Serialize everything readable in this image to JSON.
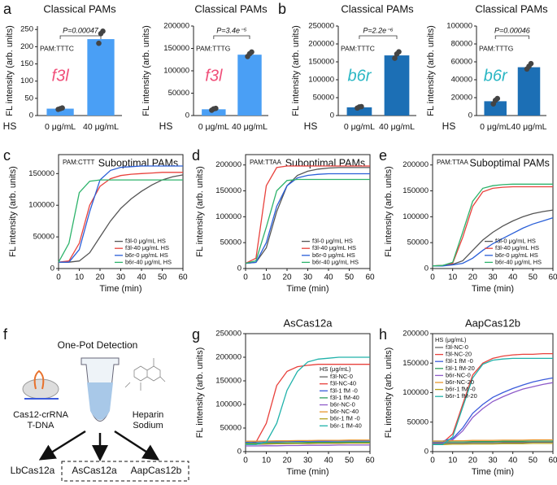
{
  "panel_labels": [
    "a",
    "b",
    "c",
    "d",
    "e",
    "f",
    "g",
    "h"
  ],
  "diagram": {
    "title": "One-Pot Detection",
    "left_label": [
      "Cas12-crRNA",
      "T-DNA"
    ],
    "right_label": [
      "Heparin",
      "Sodium"
    ],
    "outputs": [
      "LbCas12a",
      "AsCas12a",
      "AapCas12b"
    ]
  },
  "chart_data": [
    {
      "type": "bar",
      "title": "Classical PAMs",
      "ylabel": "FL intensity (arb. units)",
      "xlabel": "HS",
      "categories": [
        "0 μg/mL",
        "40 μg/mL"
      ],
      "values": [
        20,
        222
      ],
      "replicates": [
        [
          18,
          20,
          22
        ],
        [
          210,
          238,
          245
        ]
      ],
      "color": "#4a9ff5",
      "ylim": [
        0,
        260
      ],
      "yticks": [
        0,
        50,
        100,
        150,
        200,
        250
      ],
      "pam": "PAM:TTTC",
      "gene": "f3l",
      "gene_color": "#f0507a",
      "p_value": "P=0.00047"
    },
    {
      "type": "bar",
      "title": "Classical PAMs",
      "ylabel": "FL intensity (arb. units)",
      "xlabel": "HS",
      "categories": [
        "0 μg/mL",
        "40 μg/mL"
      ],
      "values": [
        14000,
        136000
      ],
      "replicates": [
        [
          12000,
          15000,
          16000
        ],
        [
          132000,
          138000,
          142000
        ]
      ],
      "color": "#4a9ff5",
      "ylim": [
        0,
        200000
      ],
      "yticks": [
        0,
        50000,
        100000,
        150000,
        200000
      ],
      "pam": "PAM:TTTG",
      "gene": "f3l",
      "gene_color": "#f0507a",
      "p_value": "P=3.4e⁻⁵"
    },
    {
      "type": "bar",
      "title": "Classical PAMs",
      "ylabel": "FL intensity (arb. units)",
      "xlabel": "HS",
      "categories": [
        "0 μg/mL",
        "40 μg/mL"
      ],
      "values": [
        23000,
        168000
      ],
      "replicates": [
        [
          21000,
          24000,
          25000
        ],
        [
          160000,
          172000,
          178000
        ]
      ],
      "color": "#1c6fb5",
      "ylim": [
        0,
        250000
      ],
      "yticks": [
        0,
        50000,
        100000,
        150000,
        200000,
        250000
      ],
      "pam": "PAM:TTTC",
      "gene": "b6r",
      "gene_color": "#2bb7c4",
      "p_value": "P=2.2e⁻⁶"
    },
    {
      "type": "bar",
      "title": "Classical PAMs",
      "ylabel": "FL intensity (arb. units)",
      "xlabel": "HS",
      "categories": [
        "0 μg/mL",
        "40 μg/mL"
      ],
      "values": [
        16000,
        54000
      ],
      "replicates": [
        [
          13000,
          17000,
          19000
        ],
        [
          52000,
          55000,
          58000
        ]
      ],
      "color": "#1c6fb5",
      "ylim": [
        0,
        100000
      ],
      "yticks": [
        0,
        20000,
        40000,
        60000,
        80000,
        100000
      ],
      "pam": "PAM:TTTG",
      "gene": "b6r",
      "gene_color": "#2bb7c4",
      "p_value": "P=0.00046"
    },
    {
      "type": "line",
      "title": "Suboptimal PAMs",
      "ylabel": "FL intensity (arb. units)",
      "xlabel": "Time (min)",
      "pam": "PAM:CTTT",
      "x": [
        0,
        5,
        10,
        15,
        20,
        25,
        30,
        35,
        40,
        45,
        50,
        55,
        60
      ],
      "xlim": [
        0,
        60
      ],
      "xticks": [
        0,
        10,
        20,
        30,
        40,
        50,
        60
      ],
      "ylim": [
        0,
        180000
      ],
      "yticks": [
        0,
        50000,
        100000,
        150000
      ],
      "legend": "lower right",
      "series": [
        {
          "name": "f3l-0 μg/mL HS",
          "color": "#555555",
          "values": [
            10000,
            10000,
            12000,
            25000,
            50000,
            75000,
            95000,
            110000,
            122000,
            132000,
            140000,
            145000,
            148000
          ]
        },
        {
          "name": "f3l-40 μg/mL HS",
          "color": "#e8413c",
          "values": [
            10000,
            12000,
            40000,
            100000,
            130000,
            142000,
            147000,
            149000,
            150000,
            151000,
            152000,
            152000,
            152000
          ]
        },
        {
          "name": "b6r-0 μg/mL HS",
          "color": "#2a5fd8",
          "values": [
            10000,
            10000,
            30000,
            90000,
            140000,
            155000,
            160000,
            161000,
            162000,
            162000,
            162000,
            162000,
            162000
          ]
        },
        {
          "name": "b6r-40 μg/mL HS",
          "color": "#2db36b",
          "values": [
            10000,
            40000,
            120000,
            138000,
            140000,
            140000,
            140000,
            140000,
            140000,
            140000,
            140000,
            140000,
            140000
          ]
        }
      ]
    },
    {
      "type": "line",
      "title": "Suboptimal PAMs",
      "ylabel": "FL intensity (arb. units)",
      "xlabel": "Time (min)",
      "pam": "PAM:TTAA",
      "x": [
        0,
        5,
        10,
        15,
        20,
        25,
        30,
        35,
        40,
        45,
        50,
        55,
        60
      ],
      "xlim": [
        0,
        60
      ],
      "xticks": [
        0,
        10,
        20,
        30,
        40,
        50,
        60
      ],
      "ylim": [
        0,
        220000
      ],
      "yticks": [
        0,
        50000,
        100000,
        150000,
        200000
      ],
      "legend": "lower right",
      "series": [
        {
          "name": "f3l-0 μg/mL HS",
          "color": "#555555",
          "values": [
            10000,
            12000,
            40000,
            110000,
            160000,
            180000,
            188000,
            192000,
            194000,
            195000,
            195000,
            195000,
            195000
          ]
        },
        {
          "name": "f3l-40 μg/mL HS",
          "color": "#e8413c",
          "values": [
            10000,
            20000,
            160000,
            195000,
            198000,
            198000,
            198000,
            198000,
            198000,
            198000,
            198000,
            198000,
            198000
          ]
        },
        {
          "name": "b6r-0 μg/mL HS",
          "color": "#2a5fd8",
          "values": [
            10000,
            12000,
            50000,
            120000,
            160000,
            175000,
            180000,
            182000,
            183000,
            183000,
            183000,
            183000,
            183000
          ]
        },
        {
          "name": "b6r-40 μg/mL HS",
          "color": "#2db36b",
          "values": [
            10000,
            15000,
            80000,
            150000,
            170000,
            172000,
            172000,
            172000,
            172000,
            172000,
            172000,
            172000,
            172000
          ]
        }
      ]
    },
    {
      "type": "line",
      "title": "Suboptimal PAMs",
      "ylabel": "FL intensity (arb. units)",
      "xlabel": "Time (min)",
      "pam": "PAM:TTAA",
      "x": [
        0,
        5,
        10,
        15,
        20,
        25,
        30,
        35,
        40,
        45,
        50,
        55,
        60
      ],
      "xlim": [
        0,
        60
      ],
      "xticks": [
        0,
        10,
        20,
        30,
        40,
        50,
        60
      ],
      "ylim": [
        0,
        220000
      ],
      "yticks": [
        0,
        50000,
        100000,
        150000,
        200000
      ],
      "legend": "lower right",
      "series": [
        {
          "name": "f3l-0 μg/mL HS",
          "color": "#555555",
          "values": [
            5000,
            6000,
            8000,
            15000,
            35000,
            55000,
            70000,
            82000,
            92000,
            100000,
            106000,
            110000,
            113000
          ]
        },
        {
          "name": "f3l-40 μg/mL HS",
          "color": "#e8413c",
          "values": [
            5000,
            6000,
            10000,
            60000,
            120000,
            148000,
            155000,
            157000,
            158000,
            158000,
            158000,
            158000,
            158000
          ]
        },
        {
          "name": "b6r-0 μg/mL HS",
          "color": "#2a5fd8",
          "values": [
            5000,
            5000,
            7000,
            10000,
            20000,
            35000,
            48000,
            58000,
            68000,
            78000,
            86000,
            92000,
            98000
          ]
        },
        {
          "name": "b6r-40 μg/mL HS",
          "color": "#2db36b",
          "values": [
            5000,
            6000,
            12000,
            70000,
            130000,
            155000,
            160000,
            162000,
            163000,
            163000,
            163000,
            163000,
            163000
          ]
        }
      ]
    },
    {
      "type": "line",
      "title": "AsCas12a",
      "ylabel": "FL intensity (arb. units)",
      "xlabel": "Time (min)",
      "legend_title": "HS (μg/mL)",
      "x": [
        0,
        5,
        10,
        15,
        20,
        25,
        30,
        35,
        40,
        45,
        50,
        55,
        60
      ],
      "xlim": [
        0,
        60
      ],
      "xticks": [
        0,
        10,
        20,
        30,
        40,
        50,
        60
      ],
      "ylim": [
        0,
        250000
      ],
      "yticks": [
        0,
        50000,
        100000,
        150000,
        200000,
        250000
      ],
      "legend": "center right",
      "series": [
        {
          "name": "f3l-NC-0",
          "color": "#666666",
          "values": [
            15000,
            15500,
            16000,
            16500,
            17000,
            17500,
            18000,
            18000,
            18500,
            18500,
            19000,
            19000,
            19000
          ]
        },
        {
          "name": "f3l-NC-40",
          "color": "#e8413c",
          "values": [
            15000,
            20000,
            60000,
            140000,
            170000,
            180000,
            183000,
            185000,
            185000,
            185000,
            185000,
            185000,
            185000
          ]
        },
        {
          "name": "f3l-1 fM -0",
          "color": "#3b5bdb",
          "values": [
            20000,
            20500,
            21000,
            21000,
            21500,
            21500,
            22000,
            22000,
            22000,
            22500,
            22500,
            22500,
            22500
          ]
        },
        {
          "name": "f3l-1 fM-40",
          "color": "#2e9e5e",
          "values": [
            18000,
            18000,
            18500,
            18500,
            19000,
            19000,
            19500,
            19500,
            19500,
            20000,
            20000,
            20000,
            20000
          ]
        },
        {
          "name": "b6r-NC-0",
          "color": "#8e5bc9",
          "values": [
            12000,
            12000,
            12500,
            12500,
            13000,
            13000,
            13500,
            13500,
            13500,
            14000,
            14000,
            14000,
            14000
          ]
        },
        {
          "name": "b6r-NC-40",
          "color": "#e8962e",
          "values": [
            22000,
            22000,
            22500,
            23000,
            23000,
            23500,
            23500,
            24000,
            24000,
            24000,
            24500,
            24500,
            24500
          ]
        },
        {
          "name": "b6r-1 fM -0",
          "color": "#b5a21c",
          "values": [
            16000,
            16000,
            16500,
            16500,
            17000,
            17000,
            17000,
            17500,
            17500,
            17500,
            18000,
            18000,
            18000
          ]
        },
        {
          "name": "b6r-1 fM-40",
          "color": "#20b2aa",
          "values": [
            15000,
            15000,
            20000,
            60000,
            130000,
            170000,
            190000,
            196000,
            198000,
            200000,
            200000,
            200000,
            200000
          ]
        }
      ]
    },
    {
      "type": "line",
      "title": "AapCas12b",
      "ylabel": "FL intensity (arb. units)",
      "xlabel": "Time (min)",
      "legend_title": "HS (μg/mL)",
      "x": [
        0,
        5,
        10,
        15,
        20,
        25,
        30,
        35,
        40,
        45,
        50,
        55,
        60
      ],
      "xlim": [
        0,
        60
      ],
      "xticks": [
        0,
        10,
        20,
        30,
        40,
        50,
        60
      ],
      "ylim": [
        0,
        200000
      ],
      "yticks": [
        0,
        50000,
        100000,
        150000,
        200000
      ],
      "legend": "upper left",
      "series": [
        {
          "name": "f3l-NC-0",
          "color": "#666666",
          "values": [
            14000,
            14000,
            14500,
            14500,
            15000,
            15000,
            15000,
            15500,
            15500,
            15500,
            16000,
            16000,
            16000
          ]
        },
        {
          "name": "f3l-NC-20",
          "color": "#e8413c",
          "values": [
            15000,
            15000,
            30000,
            80000,
            130000,
            150000,
            158000,
            162000,
            164000,
            165000,
            165000,
            166000,
            166000
          ]
        },
        {
          "name": "f3l-1 fM -0",
          "color": "#3b5bdb",
          "values": [
            18000,
            18000,
            22000,
            40000,
            65000,
            80000,
            92000,
            100000,
            107000,
            113000,
            118000,
            122000,
            125000
          ]
        },
        {
          "name": "f3l-1 fM-20",
          "color": "#2e9e5e",
          "values": [
            16000,
            16000,
            16500,
            16500,
            17000,
            17000,
            17000,
            17500,
            17500,
            17500,
            18000,
            18000,
            18000
          ]
        },
        {
          "name": "b6r-NC-0",
          "color": "#8e5bc9",
          "values": [
            15000,
            15000,
            20000,
            35000,
            58000,
            73000,
            85000,
            93000,
            100000,
            106000,
            110000,
            114000,
            117000
          ]
        },
        {
          "name": "b6r-NC-20",
          "color": "#e8962e",
          "values": [
            18000,
            18000,
            18500,
            18500,
            19000,
            19000,
            19000,
            19500,
            19500,
            19500,
            20000,
            20000,
            20000
          ]
        },
        {
          "name": "b6r-1 fM -0",
          "color": "#b5a21c",
          "values": [
            12000,
            12000,
            12500,
            12500,
            13000,
            13000,
            13000,
            13500,
            13500,
            13500,
            14000,
            14000,
            14000
          ]
        },
        {
          "name": "b6r-1 fM-20",
          "color": "#20b2aa",
          "values": [
            12000,
            12000,
            25000,
            75000,
            125000,
            148000,
            155000,
            157000,
            158000,
            158000,
            158000,
            158000,
            158000
          ]
        }
      ]
    }
  ]
}
